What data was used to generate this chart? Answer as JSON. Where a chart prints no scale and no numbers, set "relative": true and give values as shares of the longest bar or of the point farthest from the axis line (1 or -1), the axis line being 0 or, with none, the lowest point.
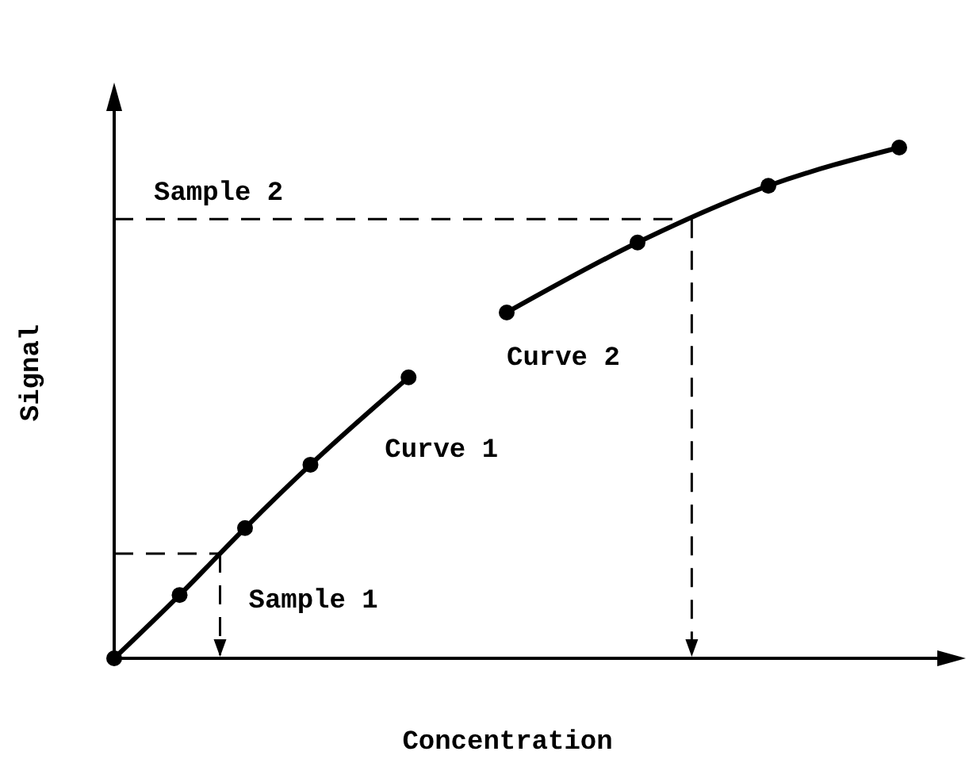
{
  "chart_data": {
    "type": "line",
    "relative": true,
    "xlabel": "Concentration",
    "ylabel": "Signal",
    "categories": [
      null,
      null,
      null,
      null,
      null,
      null,
      null,
      null,
      null,
      null,
      null,
      null,
      null,
      null,
      null,
      null,
      null,
      null,
      null,
      null,
      null,
      null,
      null,
      null,
      null
    ],
    "series": [
      {
        "name": "Curve 1",
        "type": "line",
        "color": "#000000",
        "marker": "circle",
        "values": [
          0,
          null,
          0.124,
          null,
          0.255,
          null,
          0.379,
          null,
          null,
          0.55,
          null,
          null,
          null,
          null,
          null,
          null,
          null,
          null,
          null,
          null,
          null,
          null,
          null,
          null,
          null
        ]
      },
      {
        "name": "Curve 2",
        "type": "line",
        "color": "#000000",
        "marker": "circle",
        "values": [
          null,
          null,
          null,
          null,
          null,
          null,
          null,
          null,
          null,
          null,
          null,
          null,
          0.677,
          null,
          null,
          null,
          0.814,
          null,
          null,
          null,
          0.925,
          null,
          null,
          null,
          1
        ]
      }
    ],
    "ref_lines": [
      {
        "axis": "y",
        "value": 0.205,
        "label": "Sample 1",
        "line_style": "dashed",
        "color": "#000000"
      },
      {
        "axis": "y",
        "value": 0.86,
        "label": "Sample 2",
        "line_style": "dashed",
        "color": "#000000"
      }
    ]
  }
}
